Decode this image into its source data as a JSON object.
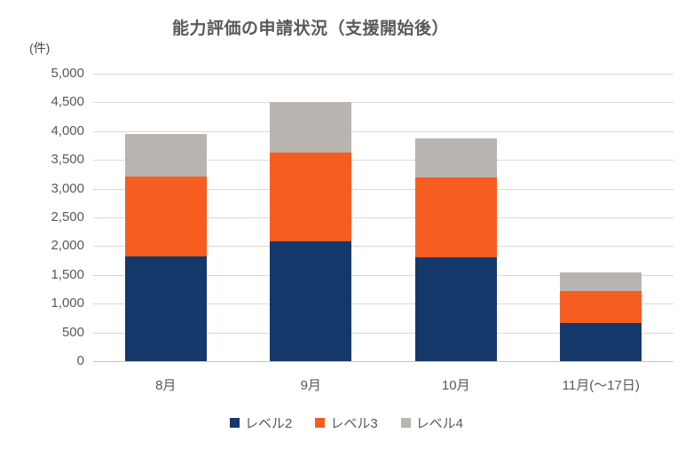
{
  "chart_data": {
    "type": "bar",
    "stacked": true,
    "title": "能力評価の申請状況（支援開始後）",
    "unit_label": "(件)",
    "xlabel": "",
    "ylabel": "件",
    "categories": [
      "8月",
      "9月",
      "10月",
      "11月(～17日)"
    ],
    "series": [
      {
        "name": "レベル2",
        "color": "#143869",
        "values": [
          1820,
          2080,
          1800,
          670
        ]
      },
      {
        "name": "レベル3",
        "color": "#F65D20",
        "values": [
          1390,
          1540,
          1390,
          550
        ]
      },
      {
        "name": "レベル4",
        "color": "#B9B4B0",
        "values": [
          740,
          880,
          690,
          330
        ]
      }
    ],
    "stack_totals": [
      3950,
      4500,
      3880,
      1550
    ],
    "ylim": [
      0,
      5000
    ],
    "y_tick_values": [
      5000,
      4500,
      4000,
      3500,
      3000,
      2500,
      2000,
      1500,
      1000,
      500,
      0
    ],
    "y_tick_labels": [
      "5,000",
      "4,500",
      "4,000",
      "3,500",
      "3,000",
      "2,500",
      "2,000",
      "1,500",
      "1,000",
      "500",
      "0"
    ],
    "grid": true,
    "legend_position": "bottom",
    "colors": {
      "gridline": "#d9d9d9",
      "axis_line": "#c8c6c4",
      "text": "#595959",
      "background": "#ffffff"
    }
  }
}
